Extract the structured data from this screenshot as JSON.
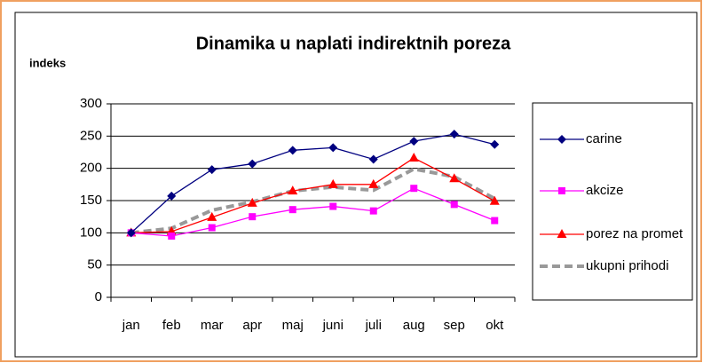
{
  "chart_data": {
    "type": "line",
    "title": "Dinamika u naplati indirektnih poreza",
    "y_label": "indeks",
    "categories": [
      "jan",
      "feb",
      "mar",
      "apr",
      "maj",
      "juni",
      "juli",
      "aug",
      "sep",
      "okt"
    ],
    "series": [
      {
        "name": "carine",
        "color": "#000080",
        "marker": "diamond",
        "values": [
          100,
          157,
          198,
          207,
          228,
          232,
          214,
          242,
          253,
          237
        ]
      },
      {
        "name": "akcize",
        "color": "#ff00ff",
        "marker": "square",
        "values": [
          100,
          95,
          108,
          125,
          136,
          141,
          134,
          169,
          144,
          119
        ]
      },
      {
        "name": "porez na promet",
        "color": "#ff0000",
        "marker": "triangle",
        "values": [
          100,
          102,
          124,
          146,
          165,
          175,
          175,
          216,
          184,
          149
        ]
      },
      {
        "name": "ukupni prihodi",
        "color": "#999999",
        "marker": "none",
        "dashed": true,
        "values": [
          100,
          107,
          135,
          148,
          165,
          171,
          166,
          199,
          187,
          153
        ]
      }
    ],
    "ylim": [
      0,
      300
    ],
    "yticks": [
      0,
      50,
      100,
      150,
      200,
      250,
      300
    ],
    "grid": true,
    "legend": "right"
  }
}
